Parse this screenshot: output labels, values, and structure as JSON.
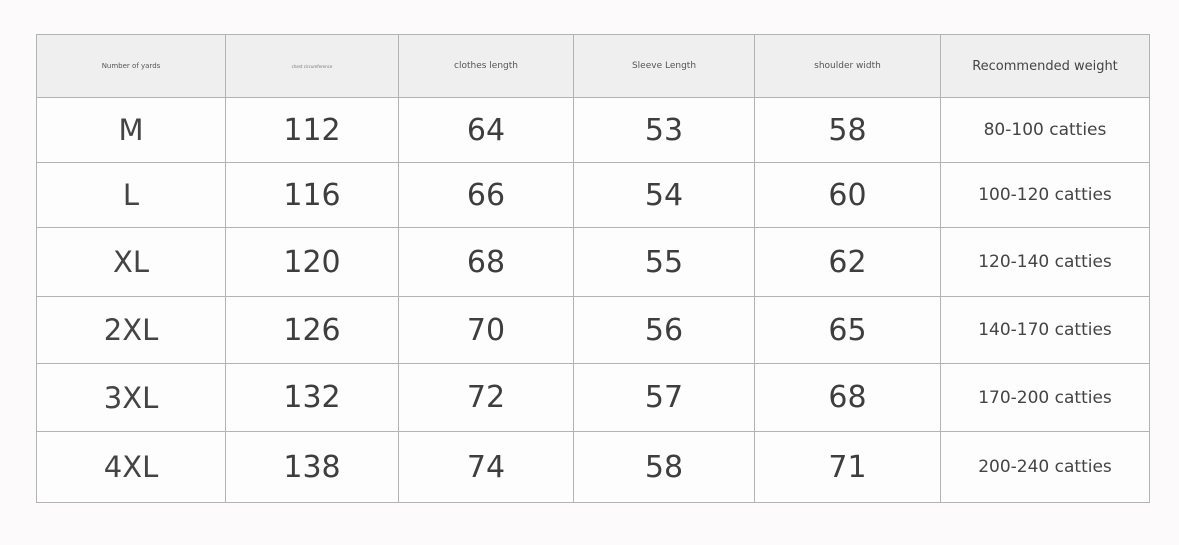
{
  "table": {
    "headers": [
      "Number of yards",
      "chest circumference",
      "clothes length",
      "Sleeve Length",
      "shoulder width",
      "Recommended weight"
    ],
    "rows": [
      {
        "size": "M",
        "chest": "112",
        "length": "64",
        "sleeve": "53",
        "shoulder": "58",
        "weight": "80-100 catties"
      },
      {
        "size": "L",
        "chest": "116",
        "length": "66",
        "sleeve": "54",
        "shoulder": "60",
        "weight": "100-120 catties"
      },
      {
        "size": "XL",
        "chest": "120",
        "length": "68",
        "sleeve": "55",
        "shoulder": "62",
        "weight": "120-140 catties"
      },
      {
        "size": "2XL",
        "chest": "126",
        "length": "70",
        "sleeve": "56",
        "shoulder": "65",
        "weight": "140-170 catties"
      },
      {
        "size": "3XL",
        "chest": "132",
        "length": "72",
        "sleeve": "57",
        "shoulder": "68",
        "weight": "170-200 catties"
      },
      {
        "size": "4XL",
        "chest": "138",
        "length": "74",
        "sleeve": "58",
        "shoulder": "71",
        "weight": "200-240 catties"
      }
    ]
  }
}
